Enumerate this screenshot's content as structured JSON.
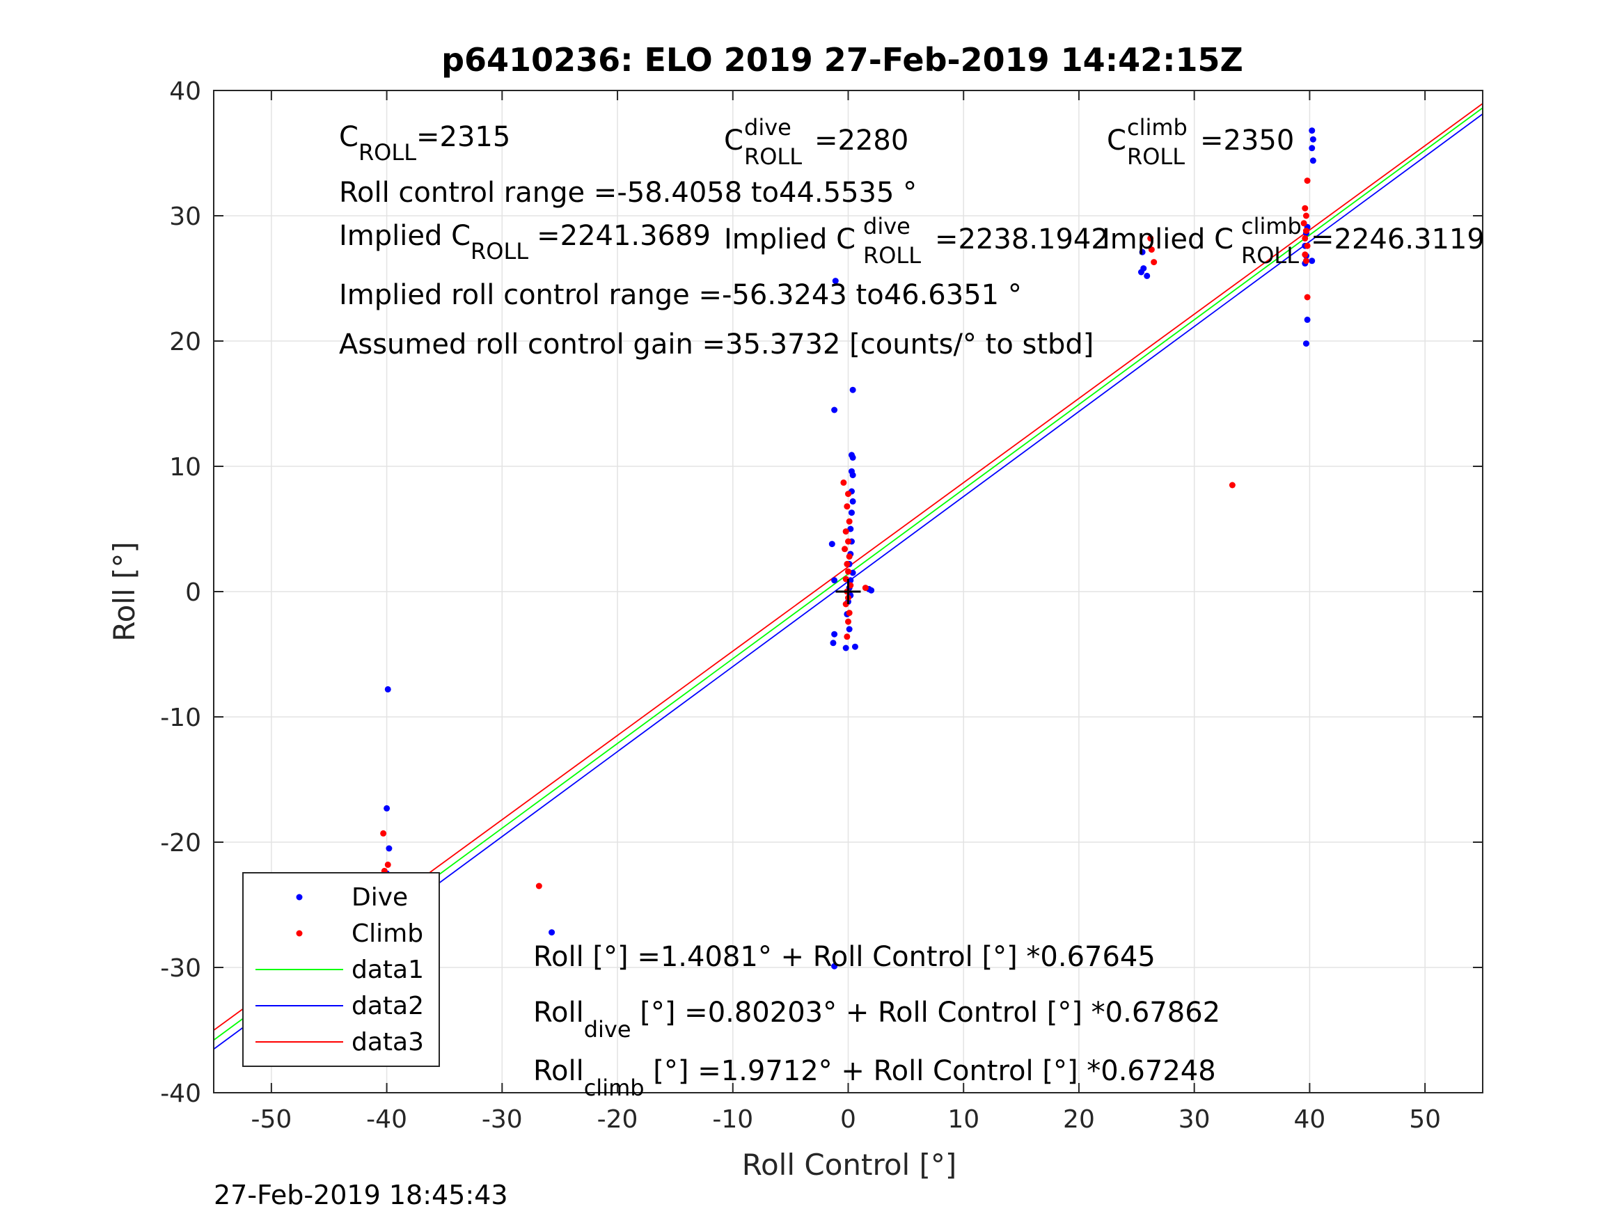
{
  "chart_data": {
    "type": "scatter",
    "title": "p6410236: ELO 2019 27-Feb-2019 14:42:15Z",
    "xlabel": "Roll Control [°]",
    "ylabel": "Roll [°]",
    "xlim": [
      -55,
      55
    ],
    "ylim": [
      -40,
      40
    ],
    "xticks": [
      -50,
      -40,
      -30,
      -20,
      -10,
      0,
      10,
      20,
      30,
      40,
      50
    ],
    "yticks": [
      -40,
      -30,
      -20,
      -10,
      0,
      10,
      20,
      30,
      40
    ],
    "xtick_labels": [
      "-50",
      "-40",
      "-30",
      "-20",
      "-10",
      "0",
      "10",
      "20",
      "30",
      "40",
      "50"
    ],
    "ytick_labels": [
      "-40",
      "-30",
      "-20",
      "-10",
      "0",
      "10",
      "20",
      "30",
      "40"
    ],
    "grid": true,
    "legend_position": "bottom-left",
    "legend": [
      "Dive",
      "Climb",
      "data1",
      "data2",
      "data3"
    ],
    "series": [
      {
        "name": "Dive",
        "kind": "points",
        "color": "#0000ff",
        "points": [
          [
            -39.9,
            -7.8
          ],
          [
            -40.0,
            -17.3
          ],
          [
            -39.8,
            -20.5
          ],
          [
            -40.0,
            -22.5
          ],
          [
            -39.9,
            -23.5
          ],
          [
            -40.1,
            -24.5
          ],
          [
            -39.8,
            -25.5
          ],
          [
            -40.0,
            -26.2
          ],
          [
            -39.7,
            -26.8
          ],
          [
            -40.1,
            -27.5
          ],
          [
            -39.9,
            -28.5
          ],
          [
            -40.0,
            -29.0
          ],
          [
            -25.7,
            -27.2
          ],
          [
            -1.2,
            -29.9
          ],
          [
            -1.1,
            24.8
          ],
          [
            -1.2,
            14.5
          ],
          [
            0.4,
            16.1
          ],
          [
            0.3,
            10.9
          ],
          [
            0.4,
            10.7
          ],
          [
            0.3,
            9.6
          ],
          [
            0.4,
            9.3
          ],
          [
            0.3,
            8.0
          ],
          [
            0.4,
            7.2
          ],
          [
            0.3,
            6.3
          ],
          [
            0.2,
            5.0
          ],
          [
            0.3,
            4.0
          ],
          [
            -1.4,
            3.8
          ],
          [
            0.2,
            3.0
          ],
          [
            0.1,
            2.2
          ],
          [
            0.4,
            1.5
          ],
          [
            0.2,
            0.9
          ],
          [
            -1.2,
            0.9
          ],
          [
            0.1,
            0.3
          ],
          [
            0.2,
            -0.3
          ],
          [
            1.8,
            0.2
          ],
          [
            2.0,
            0.1
          ],
          [
            0.0,
            -0.8
          ],
          [
            -0.1,
            -1.8
          ],
          [
            -1.2,
            -3.4
          ],
          [
            -1.3,
            -4.1
          ],
          [
            -0.2,
            -4.5
          ],
          [
            0.6,
            -4.4
          ],
          [
            0.1,
            -3.0
          ],
          [
            25.5,
            27.1
          ],
          [
            25.6,
            25.8
          ],
          [
            25.4,
            25.5
          ],
          [
            25.9,
            25.2
          ],
          [
            40.2,
            36.8
          ],
          [
            40.3,
            36.1
          ],
          [
            40.2,
            35.4
          ],
          [
            40.3,
            34.4
          ],
          [
            39.8,
            29.1
          ],
          [
            39.7,
            28.6
          ],
          [
            39.6,
            27.6
          ],
          [
            39.7,
            26.8
          ],
          [
            39.6,
            26.2
          ],
          [
            40.2,
            26.4
          ],
          [
            39.8,
            21.7
          ],
          [
            39.7,
            19.8
          ]
        ]
      },
      {
        "name": "Climb",
        "kind": "points",
        "color": "#ff0000",
        "points": [
          [
            -40.3,
            -19.3
          ],
          [
            -39.9,
            -21.8
          ],
          [
            -40.2,
            -22.3
          ],
          [
            -40.1,
            -23.0
          ],
          [
            -40.3,
            -23.5
          ],
          [
            -40.0,
            -24.0
          ],
          [
            -40.2,
            -24.6
          ],
          [
            -39.9,
            -25.2
          ],
          [
            -40.1,
            -25.9
          ],
          [
            -26.8,
            -23.5
          ],
          [
            -0.4,
            8.7
          ],
          [
            0.0,
            7.8
          ],
          [
            -0.1,
            6.8
          ],
          [
            0.1,
            5.6
          ],
          [
            -0.2,
            4.8
          ],
          [
            0.0,
            4.0
          ],
          [
            -0.3,
            3.4
          ],
          [
            0.1,
            2.8
          ],
          [
            -0.1,
            2.2
          ],
          [
            0.0,
            1.6
          ],
          [
            -0.2,
            1.0
          ],
          [
            0.2,
            0.5
          ],
          [
            -0.1,
            0.0
          ],
          [
            0.0,
            -0.5
          ],
          [
            -0.2,
            -1.0
          ],
          [
            0.1,
            -1.7
          ],
          [
            0.0,
            -2.4
          ],
          [
            -0.1,
            -3.6
          ],
          [
            1.5,
            0.3
          ],
          [
            26.2,
            28.2
          ],
          [
            26.3,
            27.3
          ],
          [
            26.5,
            26.3
          ],
          [
            33.3,
            8.5
          ],
          [
            39.8,
            32.8
          ],
          [
            39.6,
            30.6
          ],
          [
            39.7,
            30.0
          ],
          [
            39.5,
            29.4
          ],
          [
            39.7,
            28.8
          ],
          [
            39.6,
            28.2
          ],
          [
            39.8,
            27.6
          ],
          [
            39.6,
            26.9
          ],
          [
            39.7,
            26.4
          ],
          [
            39.8,
            23.5
          ]
        ]
      },
      {
        "name": "data1",
        "kind": "line",
        "color": "#00ff00",
        "intercept": 1.4081,
        "slope": 0.67645
      },
      {
        "name": "data2",
        "kind": "line",
        "color": "#0000ff",
        "intercept": 0.80203,
        "slope": 0.67862
      },
      {
        "name": "data3",
        "kind": "line",
        "color": "#ff0000",
        "intercept": 1.9712,
        "slope": 0.67248
      }
    ],
    "annotations": {
      "c_roll": {
        "main": "C",
        "sub": "ROLL",
        "value": "=2315"
      },
      "c_roll_dive": {
        "main": "C",
        "sup": "dive",
        "sub": "ROLL",
        "value": "=2280"
      },
      "c_roll_climb": {
        "main": "C",
        "sup": "climb",
        "sub": "ROLL",
        "value": "=2350"
      },
      "range": "Roll control range =-58.4058 to44.5535 °",
      "implied_c_roll": {
        "prefix": "Implied C",
        "sub": "ROLL",
        "value": "=2241.3689"
      },
      "implied_c_roll_dive": {
        "prefix": "Implied C",
        "sup": "dive",
        "sub": "ROLL",
        "value": "=2238.1942"
      },
      "implied_c_roll_climb": {
        "prefix": "Implied C",
        "sup": "climb",
        "sub": "ROLL",
        "value": "=2246.3119"
      },
      "implied_range": "Implied roll control range =-56.3243 to46.6351 °",
      "gain": "Assumed roll control gain =35.3732 [counts/° to stbd]",
      "fit_all": "Roll [°] =1.4081° + Roll Control [°] *0.67645",
      "fit_dive": {
        "main": "Roll",
        "sub": "dive",
        "rest": " [°] =0.80203° + Roll Control [°] *0.67862"
      },
      "fit_climb": {
        "main": "Roll",
        "sub": "climb",
        "rest": " [°] =1.9712° + Roll Control [°] *0.67248"
      }
    },
    "marker": {
      "x": 0,
      "y": 0,
      "symbol": "+"
    }
  },
  "footer": "27-Feb-2019 18:45:43"
}
